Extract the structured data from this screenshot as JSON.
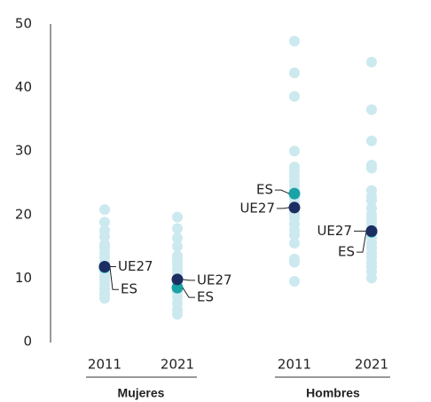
{
  "chart_data": {
    "type": "strip",
    "ylim": [
      0,
      50
    ],
    "yticks": [
      0,
      10,
      20,
      30,
      40,
      50
    ],
    "groups": [
      "Mujeres",
      "Hombres"
    ],
    "categories": [
      "2011",
      "2021",
      "2011",
      "2021"
    ],
    "series": [
      {
        "color": "#cbe9ee",
        "values": [
          [
            20.8,
            18.8,
            17.5,
            16.5,
            15.3,
            14.8,
            14,
            13.3,
            12.5,
            11,
            10.3,
            9.8,
            9,
            8.3,
            7.5,
            6.8
          ],
          [
            19.6,
            17.8,
            16.3,
            15,
            13.5,
            12.8,
            12.2,
            11.5,
            10.8,
            10,
            9.2,
            7.8,
            7,
            6,
            5,
            4.3
          ],
          [
            47.3,
            42.3,
            38.6,
            30,
            27.5,
            26.8,
            26,
            25.3,
            24.5,
            23.8,
            22.5,
            21.8,
            20.2,
            19.5,
            18.5,
            17.5,
            16.8,
            15.5,
            13,
            12.5,
            9.5
          ],
          [
            44,
            36.5,
            31.6,
            27.8,
            27.3,
            23.8,
            22.8,
            22.2,
            21,
            20,
            19.5,
            18.8,
            18,
            16.3,
            15.5,
            14.8,
            14,
            13.3,
            12.5,
            11.8,
            11,
            10
          ]
        ]
      },
      {
        "name": "ES",
        "color": "#1aa3a6",
        "values": [
          11.7,
          8.5,
          23.3,
          17.3
        ]
      },
      {
        "name": "UE27",
        "color": "#1b2d62",
        "values": [
          11.8,
          9.8,
          21.1,
          17.4
        ]
      }
    ]
  }
}
